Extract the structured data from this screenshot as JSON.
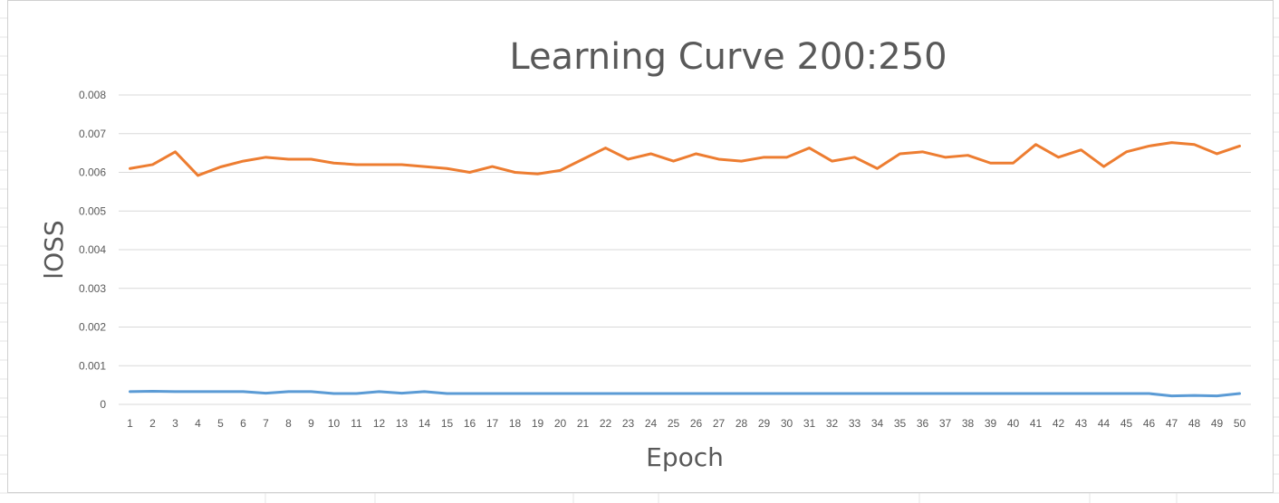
{
  "chart_data": {
    "type": "line",
    "title": "Learning Curve 200:250",
    "xlabel": "Epoch",
    "ylabel": "lOSS",
    "ylim": [
      0,
      0.008
    ],
    "yticks": [
      "0",
      "0.001",
      "0.002",
      "0.003",
      "0.004",
      "0.005",
      "0.006",
      "0.007",
      "0.008"
    ],
    "grid": true,
    "x": [
      1,
      2,
      3,
      4,
      5,
      6,
      7,
      8,
      9,
      10,
      11,
      12,
      13,
      14,
      15,
      16,
      17,
      18,
      19,
      20,
      21,
      22,
      23,
      24,
      25,
      26,
      27,
      28,
      29,
      30,
      31,
      32,
      33,
      34,
      35,
      36,
      37,
      38,
      39,
      40,
      41,
      42,
      43,
      44,
      45,
      46,
      47,
      48,
      49,
      50
    ],
    "series": [
      {
        "color": "#5b9bd5",
        "values": [
          0.00033,
          0.00034,
          0.00033,
          0.00033,
          0.00033,
          0.00033,
          0.00029,
          0.00033,
          0.00033,
          0.00028,
          0.00028,
          0.00033,
          0.00029,
          0.00033,
          0.00028,
          0.00028,
          0.00028,
          0.00028,
          0.00028,
          0.00028,
          0.00028,
          0.00028,
          0.00028,
          0.00028,
          0.00028,
          0.00028,
          0.00028,
          0.00028,
          0.00028,
          0.00028,
          0.00028,
          0.00028,
          0.00028,
          0.00028,
          0.00028,
          0.00028,
          0.00028,
          0.00028,
          0.00028,
          0.00028,
          0.00028,
          0.00028,
          0.00028,
          0.00028,
          0.00028,
          0.00028,
          0.00022,
          0.00023,
          0.00022,
          0.00028
        ]
      },
      {
        "color": "#ed7d31",
        "values": [
          0.0061,
          0.0062,
          0.00653,
          0.00592,
          0.00614,
          0.00629,
          0.00639,
          0.00634,
          0.00634,
          0.00624,
          0.0062,
          0.0062,
          0.0062,
          0.00615,
          0.0061,
          0.006,
          0.00615,
          0.006,
          0.00596,
          0.00605,
          0.00634,
          0.00663,
          0.00634,
          0.00648,
          0.00629,
          0.00648,
          0.00634,
          0.00629,
          0.00639,
          0.00639,
          0.00663,
          0.00629,
          0.00639,
          0.0061,
          0.00648,
          0.00653,
          0.00639,
          0.00644,
          0.00624,
          0.00624,
          0.00672,
          0.00639,
          0.00658,
          0.00615,
          0.00653,
          0.00668,
          0.00677,
          0.00672,
          0.00648,
          0.00668
        ]
      }
    ]
  }
}
